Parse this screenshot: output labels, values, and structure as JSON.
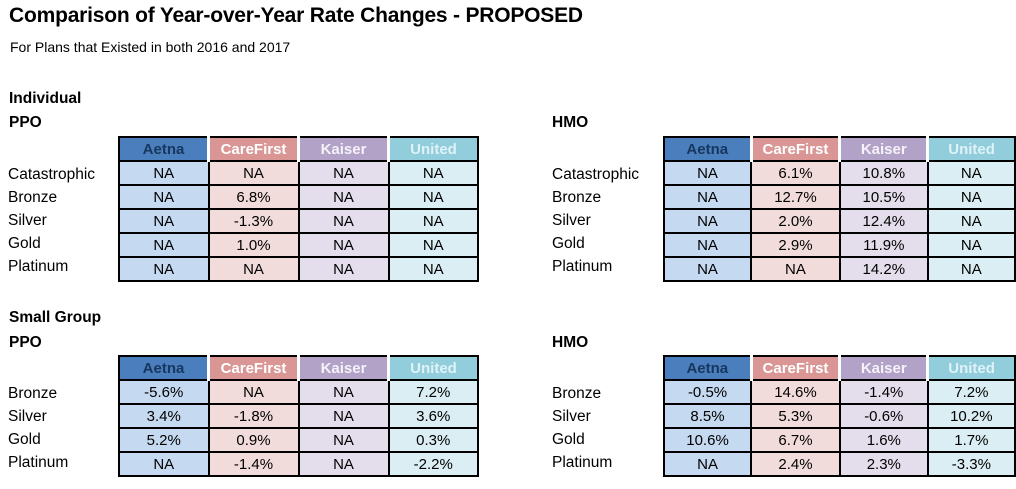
{
  "page": {
    "title": "Comparison of Year-over-Year Rate Changes - PROPOSED",
    "subtitle": "For Plans that Existed in both 2016 and 2017"
  },
  "sections": {
    "individual": {
      "label": "Individual",
      "ppo_label": "PPO",
      "hmo_label": "HMO"
    },
    "small_group": {
      "label": "Small Group",
      "ppo_label": "PPO",
      "hmo_label": "HMO"
    }
  },
  "columns": [
    {
      "name": "Aetna",
      "header_bg": "#4a7ebc",
      "header_text": "#17375e",
      "cell_bg": "#c5d9f1"
    },
    {
      "name": "CareFirst",
      "header_bg": "#d99694",
      "header_text": "#ffffff",
      "cell_bg": "#f2dcdb"
    },
    {
      "name": "Kaiser",
      "header_bg": "#b2a2c7",
      "header_text": "#f5f2f9",
      "cell_bg": "#e4deec"
    },
    {
      "name": "United",
      "header_bg": "#92cddc",
      "header_text": "#def2f7",
      "cell_bg": "#daeef3"
    }
  ],
  "chart_data": [
    {
      "type": "table",
      "title": "Individual PPO",
      "columns": [
        "Aetna",
        "CareFirst",
        "Kaiser",
        "United"
      ],
      "row_labels": [
        "Catastrophic",
        "Bronze",
        "Silver",
        "Gold",
        "Platinum"
      ],
      "values": [
        [
          "NA",
          "NA",
          "NA",
          "NA"
        ],
        [
          "NA",
          "6.8%",
          "NA",
          "NA"
        ],
        [
          "NA",
          "-1.3%",
          "NA",
          "NA"
        ],
        [
          "NA",
          "1.0%",
          "NA",
          "NA"
        ],
        [
          "NA",
          "NA",
          "NA",
          "NA"
        ]
      ]
    },
    {
      "type": "table",
      "title": "Individual HMO",
      "columns": [
        "Aetna",
        "CareFirst",
        "Kaiser",
        "United"
      ],
      "row_labels": [
        "Catastrophic",
        "Bronze",
        "Silver",
        "Gold",
        "Platinum"
      ],
      "values": [
        [
          "NA",
          "6.1%",
          "10.8%",
          "NA"
        ],
        [
          "NA",
          "12.7%",
          "10.5%",
          "NA"
        ],
        [
          "NA",
          "2.0%",
          "12.4%",
          "NA"
        ],
        [
          "NA",
          "2.9%",
          "11.9%",
          "NA"
        ],
        [
          "NA",
          "NA",
          "14.2%",
          "NA"
        ]
      ]
    },
    {
      "type": "table",
      "title": "Small Group PPO",
      "columns": [
        "Aetna",
        "CareFirst",
        "Kaiser",
        "United"
      ],
      "row_labels": [
        "Bronze",
        "Silver",
        "Gold",
        "Platinum"
      ],
      "values": [
        [
          "-5.6%",
          "NA",
          "NA",
          "7.2%"
        ],
        [
          "3.4%",
          "-1.8%",
          "NA",
          "3.6%"
        ],
        [
          "5.2%",
          "0.9%",
          "NA",
          "0.3%"
        ],
        [
          "NA",
          "-1.4%",
          "NA",
          "-2.2%"
        ]
      ]
    },
    {
      "type": "table",
      "title": "Small Group HMO",
      "columns": [
        "Aetna",
        "CareFirst",
        "Kaiser",
        "United"
      ],
      "row_labels": [
        "Bronze",
        "Silver",
        "Gold",
        "Platinum"
      ],
      "values": [
        [
          "-0.5%",
          "14.6%",
          "-1.4%",
          "7.2%"
        ],
        [
          "8.5%",
          "5.3%",
          "-0.6%",
          "10.2%"
        ],
        [
          "10.6%",
          "6.7%",
          "1.6%",
          "1.7%"
        ],
        [
          "NA",
          "2.4%",
          "2.3%",
          "-3.3%"
        ]
      ]
    }
  ]
}
